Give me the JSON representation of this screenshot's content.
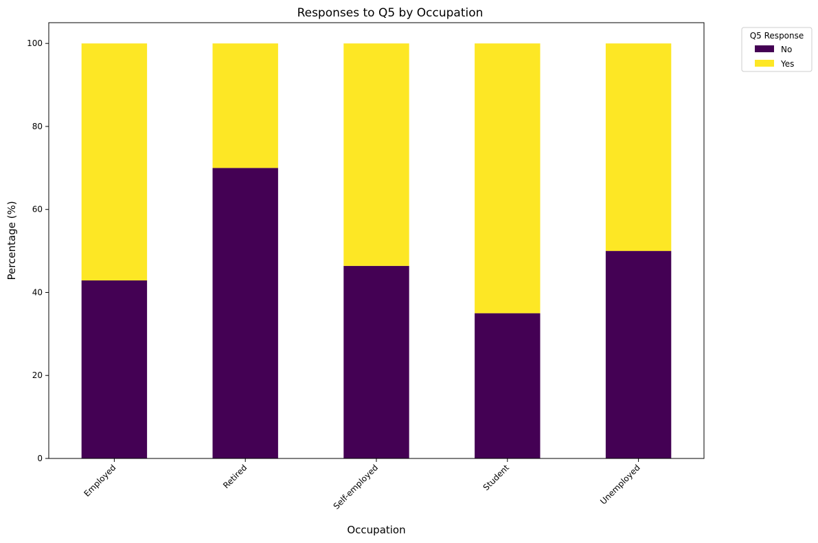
{
  "chart_data": {
    "type": "bar",
    "stacked": true,
    "title": "Responses to Q5 by Occupation",
    "xlabel": "Occupation",
    "ylabel": "Percentage (%)",
    "categories": [
      "Employed",
      "Retired",
      "Self-employed",
      "Student",
      "Unemployed"
    ],
    "series": [
      {
        "name": "No",
        "color": "#440154",
        "values": [
          42.9,
          70.0,
          46.4,
          35.0,
          50.0
        ]
      },
      {
        "name": "Yes",
        "color": "#fde725",
        "values": [
          57.1,
          30.0,
          53.6,
          65.0,
          50.0
        ]
      }
    ],
    "ylim": [
      0,
      105
    ],
    "yticks": [
      0,
      20,
      40,
      60,
      80,
      100
    ],
    "grid": false,
    "legend": {
      "title": "Q5 Response",
      "placement": "outside-upper-right",
      "entries": [
        "No",
        "Yes"
      ]
    }
  }
}
